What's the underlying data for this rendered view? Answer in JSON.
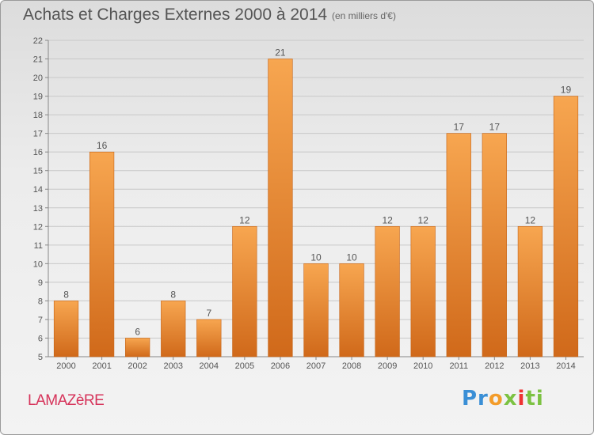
{
  "title": "Achats et Charges Externes 2000 à 2014",
  "subtitle": "(en milliers d'€)",
  "commune": "LAMAZèRE",
  "logo": {
    "text": "Proxiti",
    "p1": "Pr",
    "p2": "o",
    "p3": "x",
    "p4": "i",
    "p5": "ti"
  },
  "colors": {
    "bar_light": "#f7a650",
    "bar_dark": "#d0691a",
    "label": "#555555",
    "commune": "#d6335a"
  },
  "chart_data": {
    "type": "bar",
    "title": "Achats et Charges Externes 2000 à 2014",
    "subtitle": "(en milliers d'€)",
    "xlabel": "",
    "ylabel": "",
    "categories": [
      "2000",
      "2001",
      "2002",
      "2003",
      "2004",
      "2005",
      "2006",
      "2007",
      "2008",
      "2009",
      "2010",
      "2011",
      "2012",
      "2013",
      "2014"
    ],
    "values": [
      8,
      16,
      6,
      8,
      7,
      12,
      21,
      10,
      10,
      12,
      12,
      17,
      17,
      12,
      19
    ],
    "data_labels": [
      "8",
      "16",
      "6",
      "8",
      "7",
      "12",
      "21",
      "10",
      "10",
      "12",
      "12",
      "17",
      "17",
      "12",
      "19"
    ],
    "ylim": [
      5,
      22
    ],
    "yticks": [
      "5",
      "6",
      "7",
      "8",
      "9",
      "10",
      "11",
      "12",
      "13",
      "14",
      "15",
      "16",
      "17",
      "18",
      "19",
      "20",
      "21",
      "22"
    ],
    "grid": true
  }
}
